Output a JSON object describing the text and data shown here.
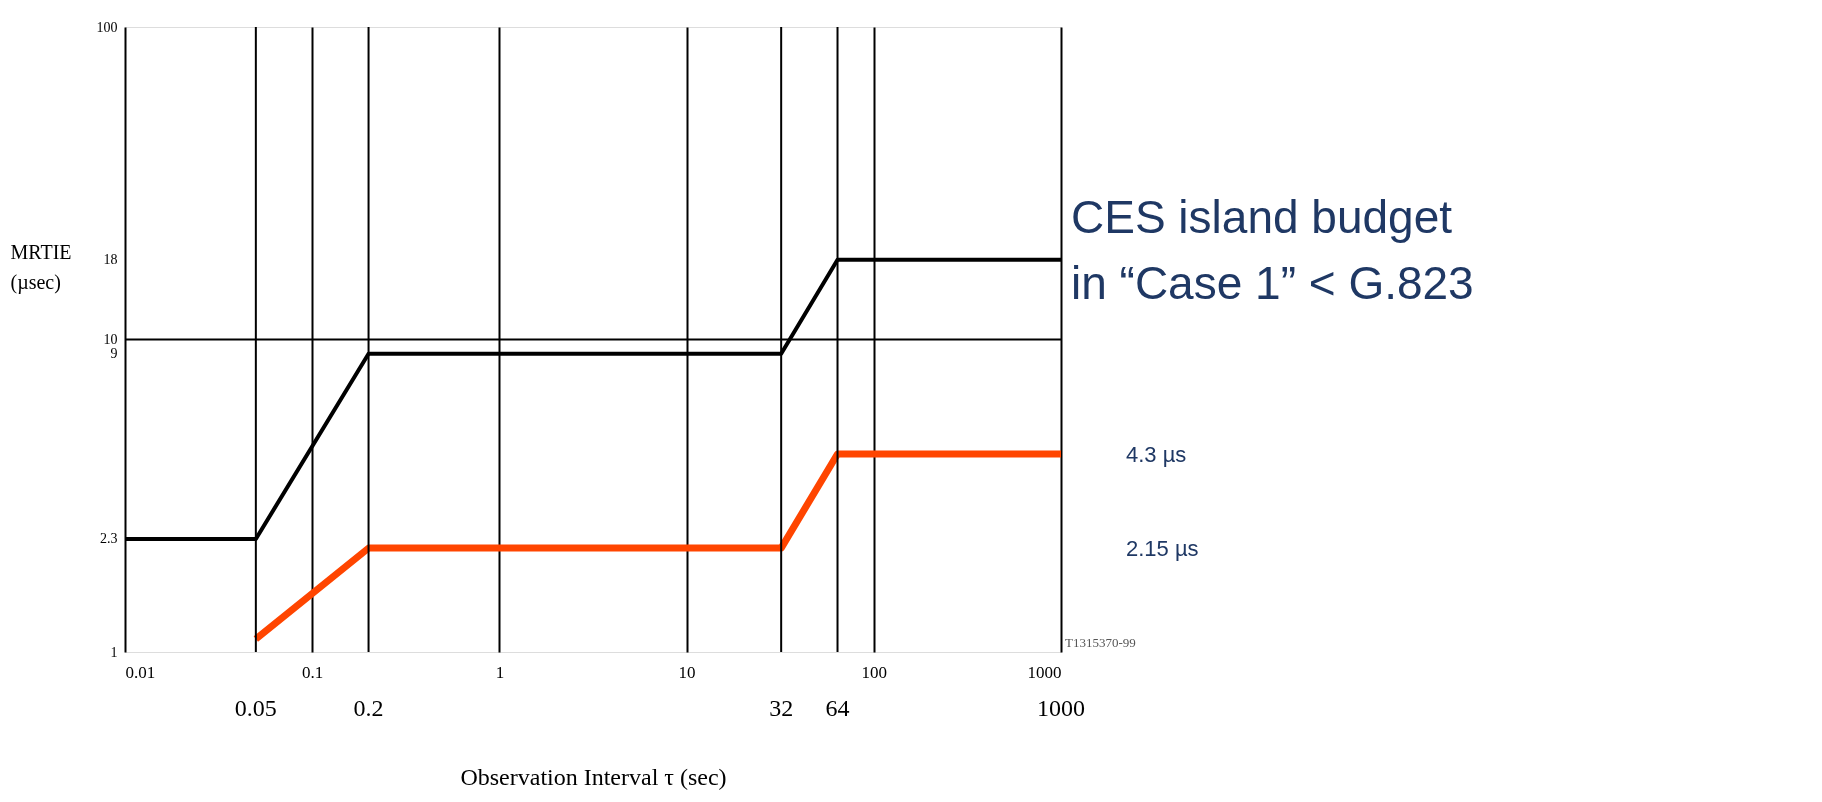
{
  "chart_data": {
    "type": "line",
    "xlabel": "Observation Interval τ (sec)",
    "ylabel": "MRTIE (µsec)",
    "log": "xy",
    "xlim": [
      0.01,
      1000
    ],
    "ylim": [
      1,
      100
    ],
    "xticks": [
      0.01,
      0.1,
      1,
      10,
      100,
      1000
    ],
    "yticks": [
      1,
      2.3,
      9,
      10,
      18,
      100
    ],
    "grid": "x",
    "marker": "none",
    "line_style": "solid",
    "series": [
      {
        "color": "#000000",
        "x": [
          0.01,
          0.05,
          0.2,
          32,
          64,
          1000
        ],
        "values": [
          2.3,
          2.3,
          9,
          9,
          18,
          18
        ]
      },
      {
        "color": "#ff4500",
        "x": [
          0.05,
          0.2,
          32,
          64,
          1000
        ],
        "values": [
          1.1,
          2.15,
          2.15,
          4.3,
          4.3
        ]
      }
    ],
    "ref_lines": [
      {
        "axis": "x",
        "value": 0.05,
        "label": "0.05"
      },
      {
        "axis": "x",
        "value": 0.2,
        "label": "0.2"
      },
      {
        "axis": "x",
        "value": 32,
        "label": "32"
      },
      {
        "axis": "x",
        "value": 64,
        "label": "64"
      },
      {
        "axis": "y",
        "value": 10,
        "label": null
      }
    ],
    "annotations": [
      "CES island budget in “Case 1” < G.823",
      "4.3 µs",
      "2.15 µs",
      "T1315370-99",
      "1000"
    ]
  }
}
